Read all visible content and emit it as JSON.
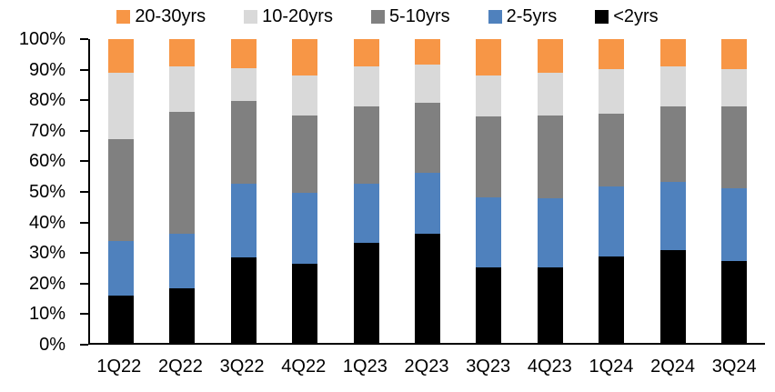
{
  "chart_data": {
    "type": "bar",
    "stacked": true,
    "title": "",
    "categories": [
      "1Q22",
      "2Q22",
      "3Q22",
      "4Q22",
      "1Q23",
      "2Q23",
      "3Q23",
      "4Q23",
      "1Q24",
      "2Q24",
      "3Q24"
    ],
    "series": [
      {
        "name": "<2yrs",
        "color": "#000000",
        "values": [
          15.5,
          18.0,
          28.0,
          26.0,
          33.0,
          36.0,
          25.0,
          25.0,
          28.5,
          30.5,
          27.0
        ]
      },
      {
        "name": "2-5yrs",
        "color": "#4F81BD",
        "values": [
          18.0,
          18.0,
          24.5,
          23.5,
          19.5,
          20.0,
          23.0,
          22.5,
          23.0,
          22.5,
          24.0
        ]
      },
      {
        "name": "5-10yrs",
        "color": "#808080",
        "values": [
          33.5,
          40.0,
          27.0,
          25.5,
          25.5,
          23.0,
          26.5,
          27.5,
          24.0,
          25.0,
          27.0
        ]
      },
      {
        "name": "10-20yrs",
        "color": "#D9D9D9",
        "values": [
          22.0,
          15.0,
          11.0,
          13.0,
          13.0,
          12.5,
          13.5,
          14.0,
          14.5,
          13.0,
          12.0
        ]
      },
      {
        "name": "20-30yrs",
        "color": "#F79646",
        "values": [
          11.0,
          9.0,
          9.5,
          12.0,
          9.0,
          8.5,
          12.0,
          11.0,
          10.0,
          9.0,
          10.0
        ]
      }
    ],
    "legend": {
      "position": "top",
      "order": [
        "20-30yrs",
        "10-20yrs",
        "5-10yrs",
        "2-5yrs",
        "<2yrs"
      ]
    },
    "yticks": [
      "0%",
      "10%",
      "20%",
      "30%",
      "40%",
      "50%",
      "60%",
      "70%",
      "80%",
      "90%",
      "100%"
    ],
    "ylim": [
      0,
      100
    ],
    "grid": false,
    "xlabel": "",
    "ylabel": ""
  },
  "colors": {
    "axis": "#000000",
    "text": "#000000",
    "background": "#FFFFFF"
  }
}
